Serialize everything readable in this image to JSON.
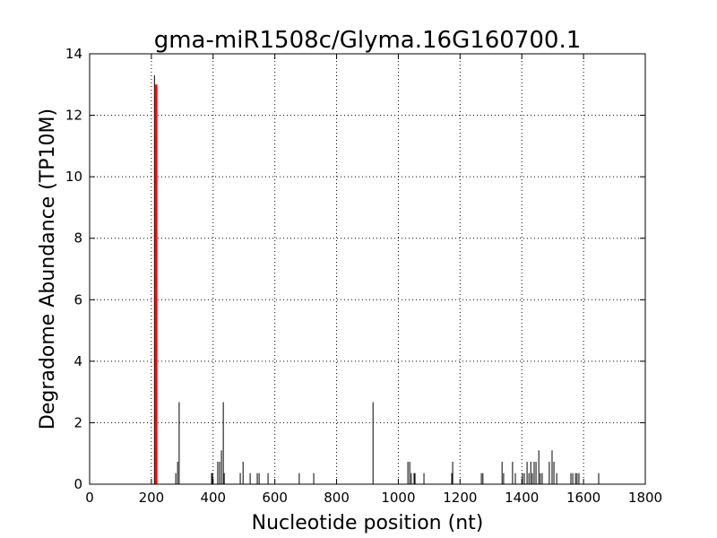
{
  "chart_data": {
    "type": "stem",
    "title": "gma-miR1508c/Glyma.16G160700.1",
    "xlabel": "Nucleotide position (nt)",
    "ylabel": "Degradome Abundance (TP10M)",
    "xlim": [
      0,
      1800
    ],
    "xticks": [
      0,
      200,
      400,
      600,
      800,
      1000,
      1200,
      1400,
      1600,
      1800
    ],
    "ylim": [
      0,
      14
    ],
    "yticks": [
      0,
      2,
      4,
      6,
      8,
      10,
      12,
      14
    ],
    "grid": true,
    "series": [
      {
        "color": "#000000",
        "linewidth": 1,
        "x": [
          210,
          279,
          285,
          290,
          395,
          398,
          415,
          421,
          427,
          433,
          436,
          488,
          497,
          520,
          543,
          549,
          578,
          679,
          726,
          918,
          1031,
          1037,
          1042,
          1051,
          1054,
          1083,
          1173,
          1176,
          1269,
          1274,
          1336,
          1341,
          1370,
          1379,
          1402,
          1408,
          1417,
          1423,
          1429,
          1434,
          1440,
          1446,
          1455,
          1460,
          1466,
          1489,
          1498,
          1504,
          1513,
          1559,
          1565,
          1574,
          1579,
          1585,
          1649
        ],
        "values": [
          13.3,
          0.36,
          0.73,
          2.67,
          0.36,
          0.36,
          0.73,
          0.73,
          1.1,
          2.67,
          0.36,
          0.36,
          0.73,
          0.36,
          0.36,
          0.36,
          0.36,
          0.36,
          0.36,
          2.67,
          0.73,
          0.73,
          0.36,
          0.36,
          0.36,
          0.36,
          0.36,
          0.73,
          0.36,
          0.36,
          0.73,
          0.36,
          0.73,
          0.36,
          0.36,
          0.36,
          0.73,
          0.36,
          0.73,
          0.36,
          0.73,
          0.73,
          1.1,
          0.36,
          0.36,
          0.73,
          1.1,
          0.73,
          0.36,
          0.36,
          0.36,
          0.36,
          0.36,
          0.36,
          0.36
        ]
      },
      {
        "color": "#ff0000",
        "linewidth": 3,
        "x": [
          215
        ],
        "values": [
          13
        ]
      }
    ]
  }
}
